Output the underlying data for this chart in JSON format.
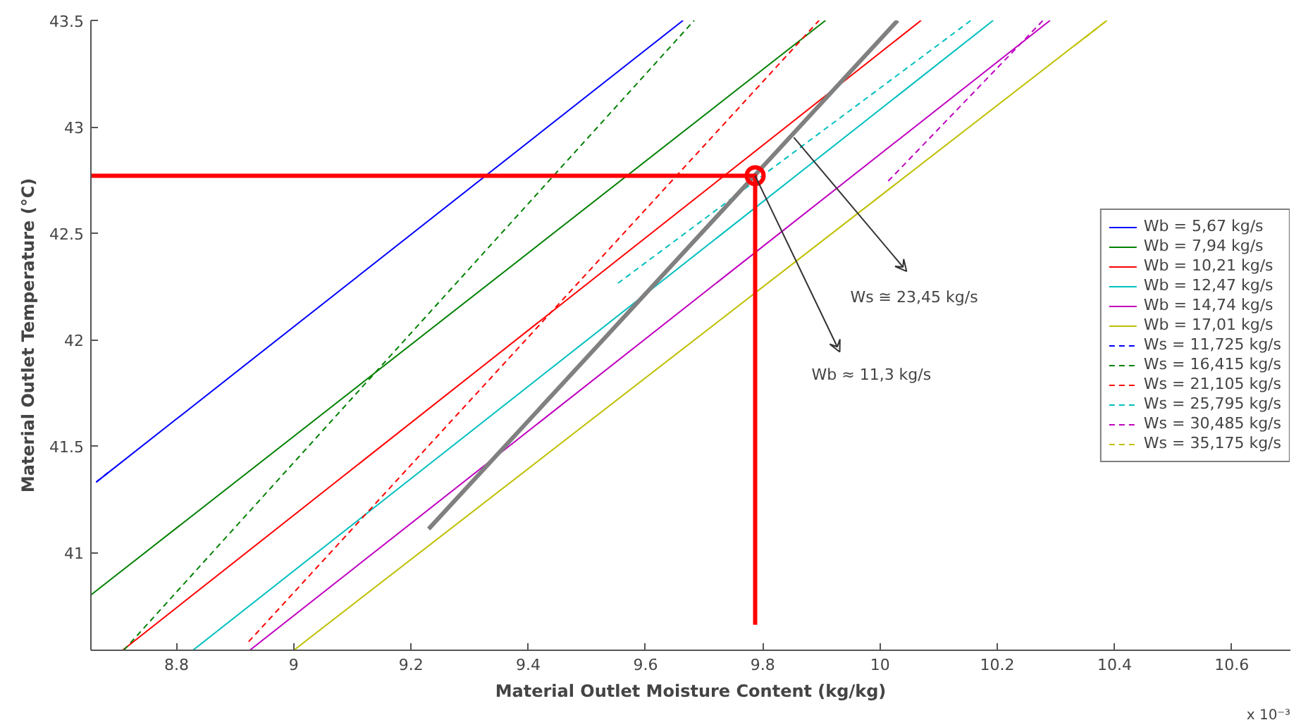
{
  "chart_data": {
    "type": "line",
    "xlabel": "Material Outlet Moisture Content (kg/kg)",
    "ylabel": "Material Outlet Temperature (°C)",
    "xlim": [
      8.654,
      10.7
    ],
    "ylim": [
      40.54,
      43.5
    ],
    "xticks": [
      8.8,
      9,
      9.2,
      9.4,
      9.6,
      9.8,
      10,
      10.2,
      10.4,
      10.6
    ],
    "yticks": [
      41,
      41.5,
      42,
      42.5,
      43,
      43.5
    ],
    "grid": false,
    "legend": "right",
    "line_style": "solid",
    "annotations": [
      {
        "text": "Ws ≅ 23,45 kg/s",
        "x": 9.853,
        "y": 42.95
      },
      {
        "text": "Wb ≈ 11,3 kg/s",
        "x": 9.787,
        "y": 42.77
      },
      "x 10⁻³"
    ],
    "series": [
      {
        "name": "Wb = 5,67 kg/s",
        "color": "#0000ff",
        "x": [
          8.663,
          9.664
        ],
        "values": [
          41.33,
          43.5
        ]
      },
      {
        "name": "Wb = 7,94 kg/s",
        "color": "#008000",
        "x": [
          8.654,
          9.907
        ],
        "values": [
          40.8,
          43.5
        ]
      },
      {
        "name": "Wb = 10,21 kg/s",
        "color": "#ff0000",
        "x": [
          8.708,
          10.07
        ],
        "values": [
          40.54,
          43.5
        ]
      },
      {
        "name": "Wb = 12,47 kg/s",
        "color": "#00bfbf",
        "x": [
          8.828,
          10.193
        ],
        "values": [
          40.54,
          43.5
        ]
      },
      {
        "name": "Wb = 14,74 kg/s",
        "color": "#bf00bf",
        "x": [
          8.925,
          10.29
        ],
        "values": [
          40.54,
          43.5
        ]
      },
      {
        "name": "Wb = 17,01 kg/s",
        "color": "#bfbf00",
        "x": [
          9.0,
          10.387
        ],
        "values": [
          40.54,
          43.5
        ]
      },
      {
        "name": "Ws = 11,725 kg/s",
        "color": "#0000ff",
        "line_style": "dotted",
        "x": [
          8.663,
          8.69
        ],
        "values": [
          41.33,
          41.39
        ]
      },
      {
        "name": "Ws = 16,415 kg/s",
        "color": "#008000",
        "line_style": "dotted",
        "x": [
          8.71,
          9.683
        ],
        "values": [
          40.54,
          43.5
        ]
      },
      {
        "name": "Ws = 21,105 kg/s",
        "color": "#ff0000",
        "line_style": "dotted",
        "x": [
          8.923,
          9.896
        ],
        "values": [
          40.58,
          43.5
        ]
      },
      {
        "name": "Ws = 25,795 kg/s",
        "color": "#00bfbf",
        "line_style": "dotted",
        "x": [
          9.553,
          10.155
        ],
        "values": [
          42.265,
          43.5
        ]
      },
      {
        "name": "Ws = 30,485 kg/s",
        "color": "#bf00bf",
        "line_style": "dotted",
        "x": [
          10.014,
          10.278
        ],
        "values": [
          42.745,
          43.5
        ]
      },
      {
        "name": "Ws = 35,175 kg/s",
        "color": "#bfbf00",
        "line_style": "dotted",
        "x": [
          10.35,
          10.387
        ],
        "values": [
          43.42,
          43.5
        ]
      },
      {
        "color": "#808080",
        "x": [
          9.23,
          10.03
        ],
        "values": [
          41.11,
          43.5
        ]
      },
      {
        "color": "#ff0000",
        "x": [
          8.654,
          9.787,
          9.787
        ],
        "values": [
          42.77,
          42.77,
          40.66
        ]
      },
      {
        "type": "scatter",
        "marker": "circle",
        "color": "#ff0000",
        "x": [
          9.787
        ],
        "values": [
          42.77
        ]
      }
    ]
  }
}
